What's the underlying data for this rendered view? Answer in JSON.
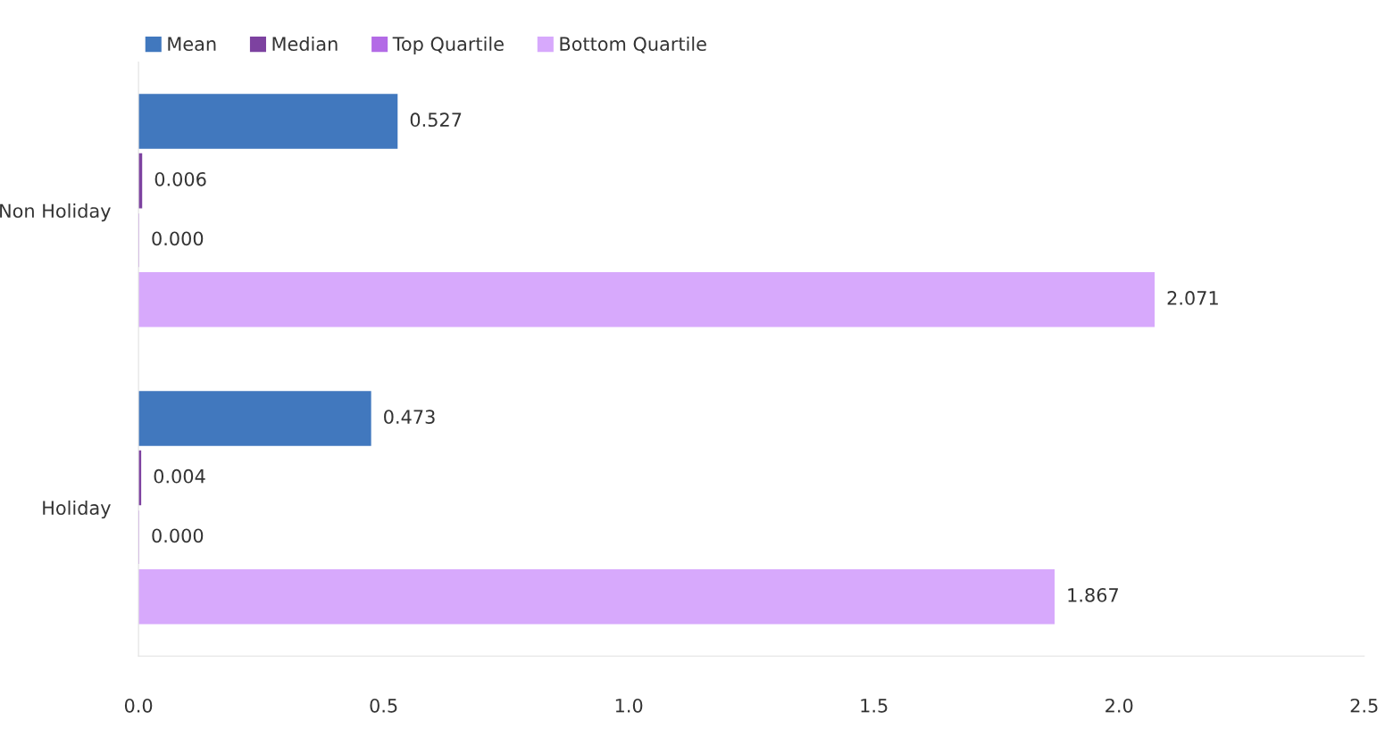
{
  "chart_data": {
    "type": "bar",
    "orientation": "horizontal",
    "categories": [
      "Non Holiday",
      "Holiday"
    ],
    "series": [
      {
        "name": "Mean",
        "color": "#4178be",
        "values": [
          0.527,
          0.473
        ],
        "value_labels": [
          "0.527",
          "0.473"
        ]
      },
      {
        "name": "Median",
        "color": "#7d42a0",
        "values": [
          0.006,
          0.004
        ],
        "value_labels": [
          "0.006",
          "0.004"
        ]
      },
      {
        "name": "Top Quartile",
        "color": "#b36be6",
        "values": [
          0.0,
          0.0
        ],
        "value_labels": [
          "0.000",
          "0.000"
        ]
      },
      {
        "name": "Bottom Quartile",
        "color": "#d7a9fc",
        "values": [
          2.071,
          1.867
        ],
        "value_labels": [
          "2.071",
          "1.867"
        ]
      }
    ],
    "xlim": [
      0,
      2.5
    ],
    "xticks": [
      {
        "value": 0,
        "label": "0.0"
      },
      {
        "value": 0.5,
        "label": "0.5"
      },
      {
        "value": 1.0,
        "label": "1.0"
      },
      {
        "value": 1.5,
        "label": "1.5"
      },
      {
        "value": 2.0,
        "label": "2.0"
      },
      {
        "value": 2.5,
        "label": "2.5"
      }
    ],
    "legend": "top left",
    "grid": false
  }
}
